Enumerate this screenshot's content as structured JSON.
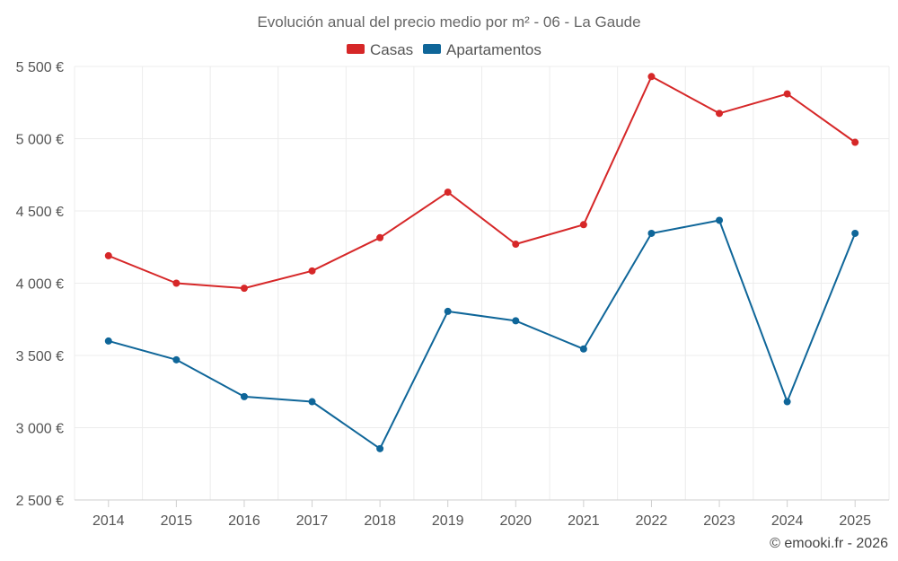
{
  "chart_data": {
    "type": "line",
    "title": "Evolución anual del precio medio por m² - 06 - La Gaude",
    "categories": [
      "2014",
      "2015",
      "2016",
      "2017",
      "2018",
      "2019",
      "2020",
      "2021",
      "2022",
      "2023",
      "2024",
      "2025"
    ],
    "ylim": [
      2500,
      5500
    ],
    "yticks": [
      2500,
      3000,
      3500,
      4000,
      4500,
      5000,
      5500
    ],
    "ytick_labels": [
      "2 500 €",
      "3 000 €",
      "3 500 €",
      "4 000 €",
      "4 500 €",
      "5 000 €",
      "5 500 €"
    ],
    "series": [
      {
        "name": "Casas",
        "color": "#d62728",
        "values": [
          4190,
          4000,
          3965,
          4085,
          4315,
          4630,
          4270,
          4405,
          5430,
          5175,
          5310,
          4975
        ]
      },
      {
        "name": "Apartamentos",
        "color": "#0f6699",
        "values": [
          3600,
          3470,
          3215,
          3180,
          2855,
          3805,
          3740,
          3545,
          4345,
          4435,
          3180,
          4345
        ]
      }
    ],
    "credit": "© emooki.fr - 2026",
    "grid": true,
    "legend": "top-center"
  }
}
